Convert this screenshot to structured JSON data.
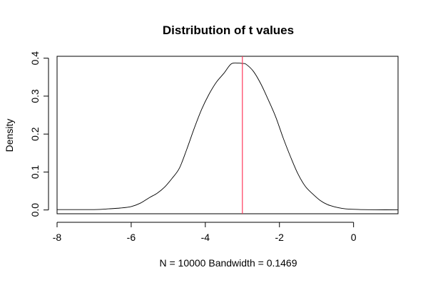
{
  "chart_data": {
    "type": "line",
    "title": "Distribution of t values",
    "xlabel": "N = 10000   Bandwidth = 0.1469",
    "ylabel": "Density",
    "xlim": [
      -8.0,
      1.2
    ],
    "ylim": [
      -0.01,
      0.405
    ],
    "x_ticks": [
      -8,
      -6,
      -4,
      -2,
      0
    ],
    "x_tick_labels": [
      "-8",
      "-6",
      "-4",
      "-2",
      "0"
    ],
    "y_ticks": [
      0,
      0.1,
      0.2,
      0.3,
      0.4
    ],
    "y_tick_labels": [
      "0.0",
      "0.1",
      "0.2",
      "0.3",
      "0.4"
    ],
    "series": [
      {
        "name": "density",
        "color": "#000000",
        "x": [
          -8.0,
          -7.0,
          -6.6,
          -6.3,
          -6.0,
          -5.75,
          -5.5,
          -5.3,
          -5.1,
          -4.9,
          -4.7,
          -4.5,
          -4.3,
          -4.1,
          -3.9,
          -3.7,
          -3.5,
          -3.3,
          -3.1,
          -3.0,
          -2.9,
          -2.7,
          -2.5,
          -2.3,
          -2.1,
          -1.9,
          -1.7,
          -1.5,
          -1.3,
          -1.1,
          -0.9,
          -0.7,
          -0.5,
          -0.3,
          -0.1,
          0.2,
          0.6,
          1.2
        ],
        "y": [
          0.001,
          0.001,
          0.003,
          0.005,
          0.009,
          0.018,
          0.033,
          0.044,
          0.06,
          0.083,
          0.11,
          0.16,
          0.215,
          0.265,
          0.305,
          0.337,
          0.36,
          0.385,
          0.387,
          0.386,
          0.384,
          0.365,
          0.332,
          0.29,
          0.245,
          0.19,
          0.14,
          0.095,
          0.062,
          0.042,
          0.025,
          0.014,
          0.008,
          0.004,
          0.002,
          0.001,
          0.0005,
          0.0002
        ]
      }
    ],
    "reference_lines": [
      {
        "type": "vertical",
        "x": -3.0,
        "color": "#ff3b5c"
      }
    ]
  }
}
